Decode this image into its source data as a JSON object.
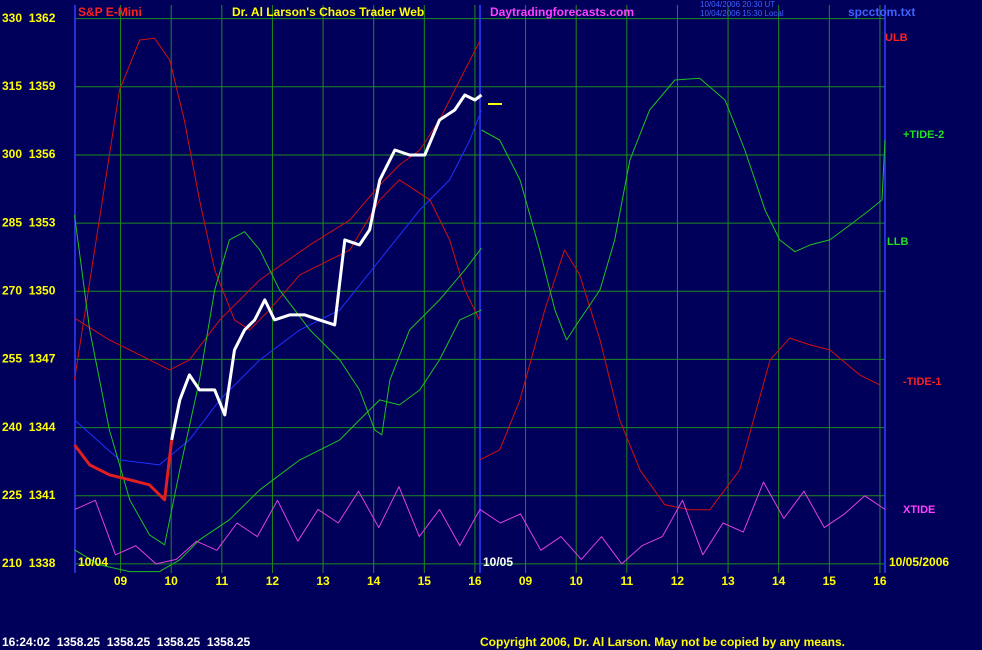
{
  "chart_data": {
    "type": "line",
    "symbol": "S&P E-Mini",
    "title": "Dr. Al Larson's Chaos Trader Web",
    "website": "Daytradingforecasts.com",
    "timestamps": [
      "10/04/2006 20:30 UT",
      "10/04/2006 15:30 Local"
    ],
    "filename": "spcctom.txt",
    "date_labels": [
      "10/04",
      "10/05",
      "10/05/2006"
    ],
    "status_line": "16:24:02  1358.25  1358.25  1358.25  1358.25",
    "copyright": "Copyright 2006, Dr. Al Larson. May not be copied by any means.",
    "xlim": [
      0.1,
      16.1
    ],
    "ylim": [
      208,
      333
    ],
    "grid": true,
    "xticks": [
      {
        "value": 1,
        "label": "09"
      },
      {
        "value": 2,
        "label": "10"
      },
      {
        "value": 3,
        "label": "11"
      },
      {
        "value": 4,
        "label": "12"
      },
      {
        "value": 5,
        "label": "13"
      },
      {
        "value": 6,
        "label": "14"
      },
      {
        "value": 7,
        "label": "15"
      },
      {
        "value": 8,
        "label": "16"
      },
      {
        "value": 9,
        "label": "09"
      },
      {
        "value": 10,
        "label": "10"
      },
      {
        "value": 11,
        "label": "11"
      },
      {
        "value": 12,
        "label": "12"
      },
      {
        "value": 13,
        "label": "13"
      },
      {
        "value": 14,
        "label": "14"
      },
      {
        "value": 15,
        "label": "15"
      },
      {
        "value": 16,
        "label": "16"
      }
    ],
    "yticks": [
      {
        "value": 330,
        "label": "330  1362"
      },
      {
        "value": 315,
        "label": "315  1359"
      },
      {
        "value": 300,
        "label": "300  1356"
      },
      {
        "value": 285,
        "label": "285  1353"
      },
      {
        "value": 270,
        "label": "270  1350"
      },
      {
        "value": 255,
        "label": "255  1347"
      },
      {
        "value": 240,
        "label": "240  1344"
      },
      {
        "value": 225,
        "label": "225  1341"
      },
      {
        "value": 210,
        "label": "210  1338"
      }
    ],
    "series": [
      {
        "color": "#d01010",
        "x": [
          0.09,
          0.58,
          0.98,
          1.38,
          1.67,
          1.97,
          2.26,
          2.56,
          2.86,
          3.25,
          3.55,
          3.94,
          4.54,
          5.53,
          6.12,
          6.51,
          7.11,
          7.5,
          7.8,
          8.09
        ],
        "values": [
          250.5,
          285.7,
          314.3,
          325.3,
          325.7,
          320.9,
          307.7,
          290.1,
          274.7,
          263.7,
          261.5,
          265.9,
          273.6,
          279.1,
          290.1,
          294.5,
          290.1,
          281.3,
          270.3,
          263.7
        ]
      },
      {
        "name": "ULB",
        "color": "#d01010",
        "x": [
          0.09,
          0.78,
          1.38,
          1.97,
          2.36,
          2.96,
          3.75,
          4.74,
          5.53,
          6.12,
          6.51,
          6.91,
          7.3,
          7.7,
          8.09
        ],
        "values": [
          264.1,
          259.3,
          256.0,
          252.7,
          254.9,
          263.7,
          272.5,
          280.2,
          285.7,
          293.4,
          297.8,
          301.1,
          307.7,
          316.5,
          324.9
        ]
      },
      {
        "name": "-TIDE-1",
        "color": "#d01010",
        "x": [
          8.09,
          8.49,
          8.89,
          9.38,
          9.77,
          10.07,
          10.47,
          10.86,
          11.26,
          11.75,
          12.25,
          12.64,
          13.23,
          13.83,
          14.22,
          14.62,
          15.01,
          15.6,
          16.0
        ],
        "values": [
          232.9,
          235.1,
          246.1,
          265.9,
          279.1,
          273.6,
          259.3,
          241.7,
          230.7,
          223.0,
          221.9,
          221.9,
          230.7,
          254.9,
          259.7,
          258.2,
          257.1,
          251.6,
          249.4
        ]
      },
      {
        "color": "#2030ff",
        "x": [
          0.09,
          0.98,
          1.77,
          2.36,
          2.96,
          3.75,
          4.54,
          5.33,
          6.12,
          6.91,
          7.5,
          7.9,
          8.13
        ],
        "values": [
          241.7,
          232.9,
          231.8,
          237.3,
          246.1,
          254.9,
          261.5,
          265.9,
          276.9,
          287.9,
          294.5,
          303.3,
          309.9
        ]
      },
      {
        "color": "#20c020",
        "x": [
          0.09,
          0.39,
          0.78,
          1.18,
          1.57,
          1.87,
          2.17,
          2.56,
          2.86,
          3.15,
          3.45,
          3.75,
          4.14,
          4.74,
          5.33,
          5.72,
          6.02,
          6.16,
          6.32,
          6.71,
          7.3,
          7.8,
          8.13
        ],
        "values": [
          286.8,
          261.5,
          239.5,
          224.1,
          216.4,
          214.2,
          230.7,
          250.5,
          270.3,
          281.3,
          283.1,
          279.1,
          270.3,
          261.5,
          254.9,
          248.3,
          239.5,
          238.4,
          250.5,
          261.5,
          268.1,
          274.7,
          279.5
        ]
      },
      {
        "name": "LLB",
        "color": "#20c020",
        "x": [
          0.09,
          0.58,
          1.18,
          1.77,
          2.17,
          2.56,
          3.15,
          3.75,
          4.54,
          5.33,
          5.72,
          6.12,
          6.51,
          6.91,
          7.3,
          7.7,
          8.13
        ],
        "values": [
          213.1,
          209.8,
          208.3,
          208.3,
          210.9,
          215.3,
          219.7,
          226.3,
          232.9,
          237.3,
          241.7,
          246.1,
          245.0,
          248.3,
          254.9,
          263.7,
          265.9
        ]
      },
      {
        "name": "+TIDE-2",
        "color": "#20c020",
        "x": [
          8.13,
          8.49,
          8.89,
          9.28,
          9.58,
          9.81,
          10.07,
          10.47,
          10.76,
          11.06,
          11.45,
          11.95,
          12.44,
          12.94,
          13.33,
          13.73,
          14.02,
          14.32,
          14.62,
          15.01,
          15.41,
          15.8,
          16.04,
          16.1
        ],
        "values": [
          305.5,
          303.3,
          294.5,
          279.1,
          265.9,
          259.3,
          263.7,
          270.3,
          281.3,
          298.9,
          309.9,
          316.5,
          316.9,
          312.1,
          301.1,
          287.9,
          281.3,
          278.7,
          280.2,
          281.3,
          284.6,
          287.9,
          290.1,
          303.3
        ]
      },
      {
        "name": "XTIDE",
        "color": "#e040e0",
        "x": [
          0.1,
          0.5,
          0.9,
          1.3,
          1.7,
          2.1,
          2.5,
          2.9,
          3.3,
          3.7,
          4.1,
          4.5,
          4.9,
          5.3,
          5.7,
          6.1,
          6.5,
          6.9,
          7.3,
          7.7,
          8.1,
          8.5,
          8.9,
          9.3,
          9.7,
          10.1,
          10.5,
          10.9,
          11.3,
          11.7,
          12.1,
          12.5,
          12.9,
          13.3,
          13.7,
          14.1,
          14.5,
          14.9,
          15.3,
          15.7,
          16.1
        ],
        "values": [
          222,
          224,
          212,
          214,
          210,
          211,
          215,
          213,
          219,
          216,
          224,
          215,
          222,
          219,
          226,
          218,
          227,
          216,
          222,
          214,
          222,
          219,
          221,
          213,
          216,
          211,
          216,
          210,
          214,
          216,
          224,
          212,
          219,
          217,
          228,
          220,
          226,
          218,
          221,
          225,
          222
        ]
      },
      {
        "color": "#e02020",
        "x": [
          0.09,
          0.39,
          0.78,
          1.18,
          1.57,
          1.87,
          2.01
        ],
        "values": [
          236.2,
          231.8,
          229.6,
          228.5,
          227.4,
          224.1,
          237.3
        ]
      },
      {
        "color": "#ffffff",
        "x": [
          2.01,
          2.17,
          2.36,
          2.56,
          2.86,
          3.06,
          3.25,
          3.45,
          3.65,
          3.85,
          4.04,
          4.34,
          4.64,
          4.93,
          5.23,
          5.43,
          5.72,
          5.92,
          6.12,
          6.42,
          6.71,
          7.01,
          7.3,
          7.6,
          7.8,
          8.0,
          8.13
        ],
        "values": [
          237.3,
          246.1,
          251.6,
          248.3,
          248.3,
          242.8,
          257.1,
          261.5,
          263.7,
          268.1,
          263.7,
          264.8,
          264.8,
          263.7,
          262.6,
          281.3,
          280.2,
          283.5,
          294.5,
          301.1,
          300.0,
          300.0,
          307.7,
          309.9,
          313.2,
          312.1,
          313.2
        ]
      }
    ]
  }
}
